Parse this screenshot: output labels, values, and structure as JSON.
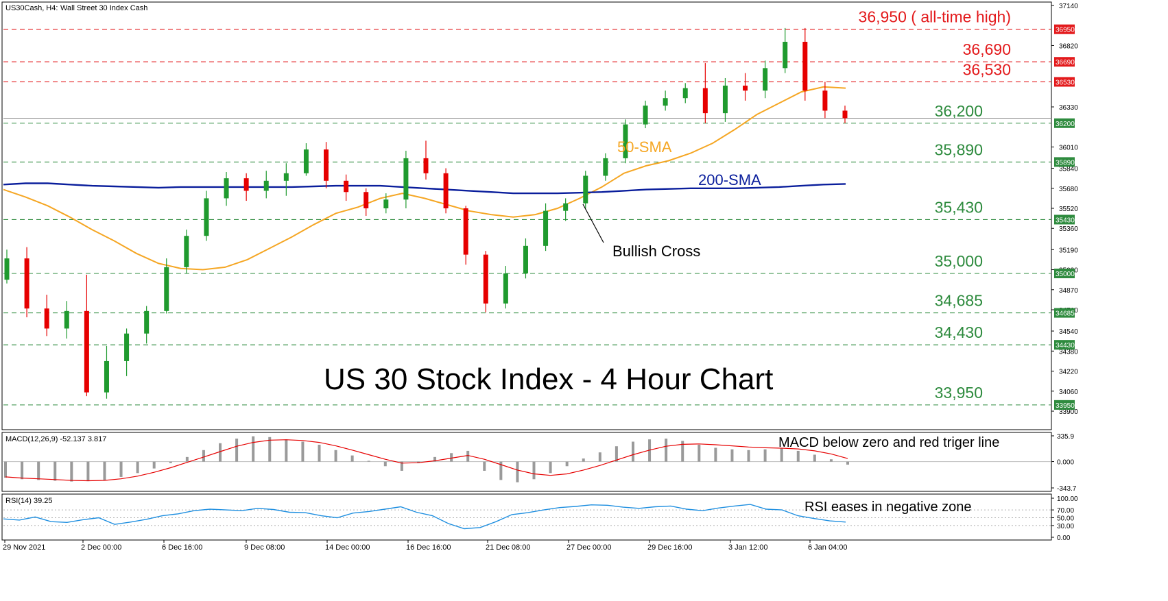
{
  "header": {
    "symbol": "US30Cash, H4:",
    "description": "Wall Street 30 Index Cash"
  },
  "colors": {
    "resistance": "#e31a1c",
    "support": "#2e8b3e",
    "bull_candle": "#1f9a2e",
    "bear_candle": "#e60000",
    "sma50": "#f5a623",
    "sma200": "#0a1e9c",
    "macd_signal": "#e60000",
    "macd_hist": "#9a9a9a",
    "rsi_line": "#1f8fe0"
  },
  "chart_data": [
    {
      "type": "candlestick",
      "title": "US 30 Stock Index - 4 Hour Chart",
      "ylim": [
        33900,
        37140
      ],
      "y_ticks": [
        "37140",
        "36820",
        "36330",
        "36010",
        "35840",
        "35680",
        "35520",
        "35360",
        "35190",
        "35030",
        "34870",
        "34710",
        "34540",
        "34380",
        "34220",
        "34060",
        "33900"
      ],
      "right_axis_badges": [
        {
          "label": "36950",
          "value": 36950,
          "color": "red"
        },
        {
          "label": "36690",
          "value": 36690,
          "color": "red"
        },
        {
          "label": "36530",
          "value": 36530,
          "color": "red"
        },
        {
          "label": "36200",
          "value": 36200,
          "color": "green"
        },
        {
          "label": "35890",
          "value": 35890,
          "color": "green"
        },
        {
          "label": "35430",
          "value": 35430,
          "color": "green"
        },
        {
          "label": "35000",
          "value": 35000,
          "color": "green"
        },
        {
          "label": "34685",
          "value": 34685,
          "color": "green"
        },
        {
          "label": "34430",
          "value": 34430,
          "color": "green"
        },
        {
          "label": "33950",
          "value": 33950,
          "color": "green"
        }
      ],
      "resistance_levels": [
        {
          "value": 36950,
          "label": "36,950 ( all-time high)"
        },
        {
          "value": 36690,
          "label": "36,690"
        },
        {
          "value": 36530,
          "label": "36,530"
        }
      ],
      "support_levels": [
        {
          "value": 36200,
          "label": "36,200"
        },
        {
          "value": 35890,
          "label": "35,890"
        },
        {
          "value": 35430,
          "label": "35,430"
        },
        {
          "value": 35000,
          "label": "35,000"
        },
        {
          "value": 34685,
          "label": "34,685"
        },
        {
          "value": 34430,
          "label": "34,430"
        },
        {
          "value": 33950,
          "label": "33,950"
        }
      ],
      "x_labels": [
        "29 Nov 2021",
        "2 Dec 00:00",
        "6 Dec 16:00",
        "9 Dec 08:00",
        "14 Dec 00:00",
        "16 Dec 16:00",
        "21 Dec 08:00",
        "27 Dec 00:00",
        "29 Dec 16:00",
        "3 Jan 12:00",
        "6 Jan 04:00"
      ],
      "series": [
        {
          "name": "50-SMA",
          "values": [
            35670,
            35610,
            35540,
            35450,
            35350,
            35260,
            35160,
            35080,
            35040,
            35030,
            35050,
            35110,
            35200,
            35290,
            35390,
            35480,
            35530,
            35600,
            35640,
            35600,
            35550,
            35500,
            35470,
            35450,
            35470,
            35520,
            35600,
            35690,
            35800,
            35860,
            35900,
            35960,
            36040,
            36150,
            36270,
            36360,
            36450,
            36490,
            36480
          ]
        },
        {
          "name": "200-SMA",
          "values": [
            35710,
            35720,
            35720,
            35710,
            35700,
            35695,
            35690,
            35685,
            35690,
            35690,
            35690,
            35690,
            35690,
            35690,
            35695,
            35700,
            35700,
            35700,
            35690,
            35680,
            35670,
            35660,
            35650,
            35640,
            35640,
            35640,
            35645,
            35650,
            35660,
            35670,
            35675,
            35680,
            35680,
            35680,
            35685,
            35690,
            35700,
            35710,
            35715
          ]
        }
      ],
      "candles": [
        [
          34950,
          35190,
          34920,
          35120
        ],
        [
          35120,
          35210,
          34650,
          34720
        ],
        [
          34720,
          34830,
          34500,
          34560
        ],
        [
          34560,
          34780,
          34480,
          34700
        ],
        [
          34700,
          34990,
          34020,
          34050
        ],
        [
          34050,
          34420,
          34000,
          34300
        ],
        [
          34300,
          34560,
          34180,
          34520
        ],
        [
          34520,
          34740,
          34440,
          34700
        ],
        [
          34700,
          35120,
          34680,
          35050
        ],
        [
          35050,
          35350,
          35000,
          35300
        ],
        [
          35300,
          35660,
          35260,
          35600
        ],
        [
          35600,
          35810,
          35540,
          35760
        ],
        [
          35760,
          35800,
          35580,
          35660
        ],
        [
          35660,
          35820,
          35600,
          35740
        ],
        [
          35740,
          35880,
          35620,
          35800
        ],
        [
          35800,
          36040,
          35780,
          35990
        ],
        [
          35990,
          36050,
          35680,
          35740
        ],
        [
          35740,
          35790,
          35580,
          35650
        ],
        [
          35650,
          35680,
          35460,
          35520
        ],
        [
          35520,
          35640,
          35480,
          35590
        ],
        [
          35590,
          35980,
          35520,
          35920
        ],
        [
          35920,
          36060,
          35750,
          35800
        ],
        [
          35800,
          35840,
          35480,
          35520
        ],
        [
          35520,
          35540,
          35070,
          35150
        ],
        [
          35150,
          35180,
          34690,
          34760
        ],
        [
          34760,
          35060,
          34720,
          35000
        ],
        [
          35000,
          35280,
          34960,
          35220
        ],
        [
          35220,
          35560,
          35180,
          35500
        ],
        [
          35500,
          35600,
          35420,
          35560
        ],
        [
          35560,
          35820,
          35520,
          35780
        ],
        [
          35780,
          35960,
          35740,
          35920
        ],
        [
          35920,
          36230,
          35880,
          36190
        ],
        [
          36190,
          36380,
          36160,
          36340
        ],
        [
          36340,
          36460,
          36300,
          36400
        ],
        [
          36400,
          36520,
          36360,
          36480
        ],
        [
          36480,
          36680,
          36200,
          36280
        ],
        [
          36280,
          36560,
          36210,
          36500
        ],
        [
          36500,
          36600,
          36380,
          36460
        ],
        [
          36460,
          36700,
          36400,
          36640
        ],
        [
          36640,
          36960,
          36600,
          36850
        ],
        [
          36850,
          36960,
          36380,
          36460
        ],
        [
          36460,
          36530,
          36240,
          36300
        ],
        [
          36300,
          36340,
          36200,
          36240
        ]
      ]
    },
    {
      "type": "bar",
      "title": "MACD(12,26,9) -52.137 3.817",
      "annotation": "MACD below zero and red triger line",
      "ylim": [
        -343.7,
        335.9
      ],
      "y_ticks": [
        "335.9",
        "0.000",
        "-343.7"
      ],
      "histogram": [
        -210,
        -230,
        -240,
        -250,
        -260,
        -255,
        -240,
        -200,
        -150,
        -90,
        -20,
        60,
        150,
        240,
        300,
        330,
        320,
        290,
        260,
        220,
        150,
        80,
        10,
        -60,
        -120,
        -20,
        60,
        110,
        140,
        -120,
        -240,
        -270,
        -230,
        -150,
        -60,
        40,
        120,
        200,
        260,
        290,
        300,
        270,
        220,
        180,
        160,
        150,
        160,
        170,
        140,
        90,
        30,
        -40
      ],
      "signal": [
        -200,
        -215,
        -225,
        -235,
        -245,
        -250,
        -245,
        -225,
        -190,
        -140,
        -80,
        -10,
        60,
        130,
        200,
        250,
        280,
        285,
        275,
        250,
        205,
        150,
        90,
        30,
        -20,
        -15,
        10,
        45,
        80,
        30,
        -40,
        -110,
        -160,
        -180,
        -160,
        -110,
        -50,
        20,
        90,
        150,
        200,
        225,
        230,
        220,
        205,
        190,
        180,
        175,
        165,
        140,
        100,
        40
      ]
    },
    {
      "type": "line",
      "title": "RSI(14) 39.25",
      "annotation": "RSI eases in negative zone",
      "ylim": [
        0,
        100
      ],
      "y_ticks": [
        "100.00",
        "70.00",
        "50.00",
        "30.00",
        "0.00"
      ],
      "values": [
        47,
        44,
        52,
        40,
        38,
        45,
        50,
        33,
        39,
        46,
        55,
        60,
        68,
        72,
        70,
        68,
        74,
        71,
        64,
        63,
        55,
        50,
        62,
        66,
        72,
        78,
        64,
        55,
        35,
        22,
        25,
        40,
        58,
        63,
        70,
        76,
        79,
        83,
        82,
        77,
        74,
        78,
        80,
        72,
        68,
        75,
        80,
        84,
        72,
        70,
        55,
        48,
        42,
        39
      ]
    }
  ]
}
